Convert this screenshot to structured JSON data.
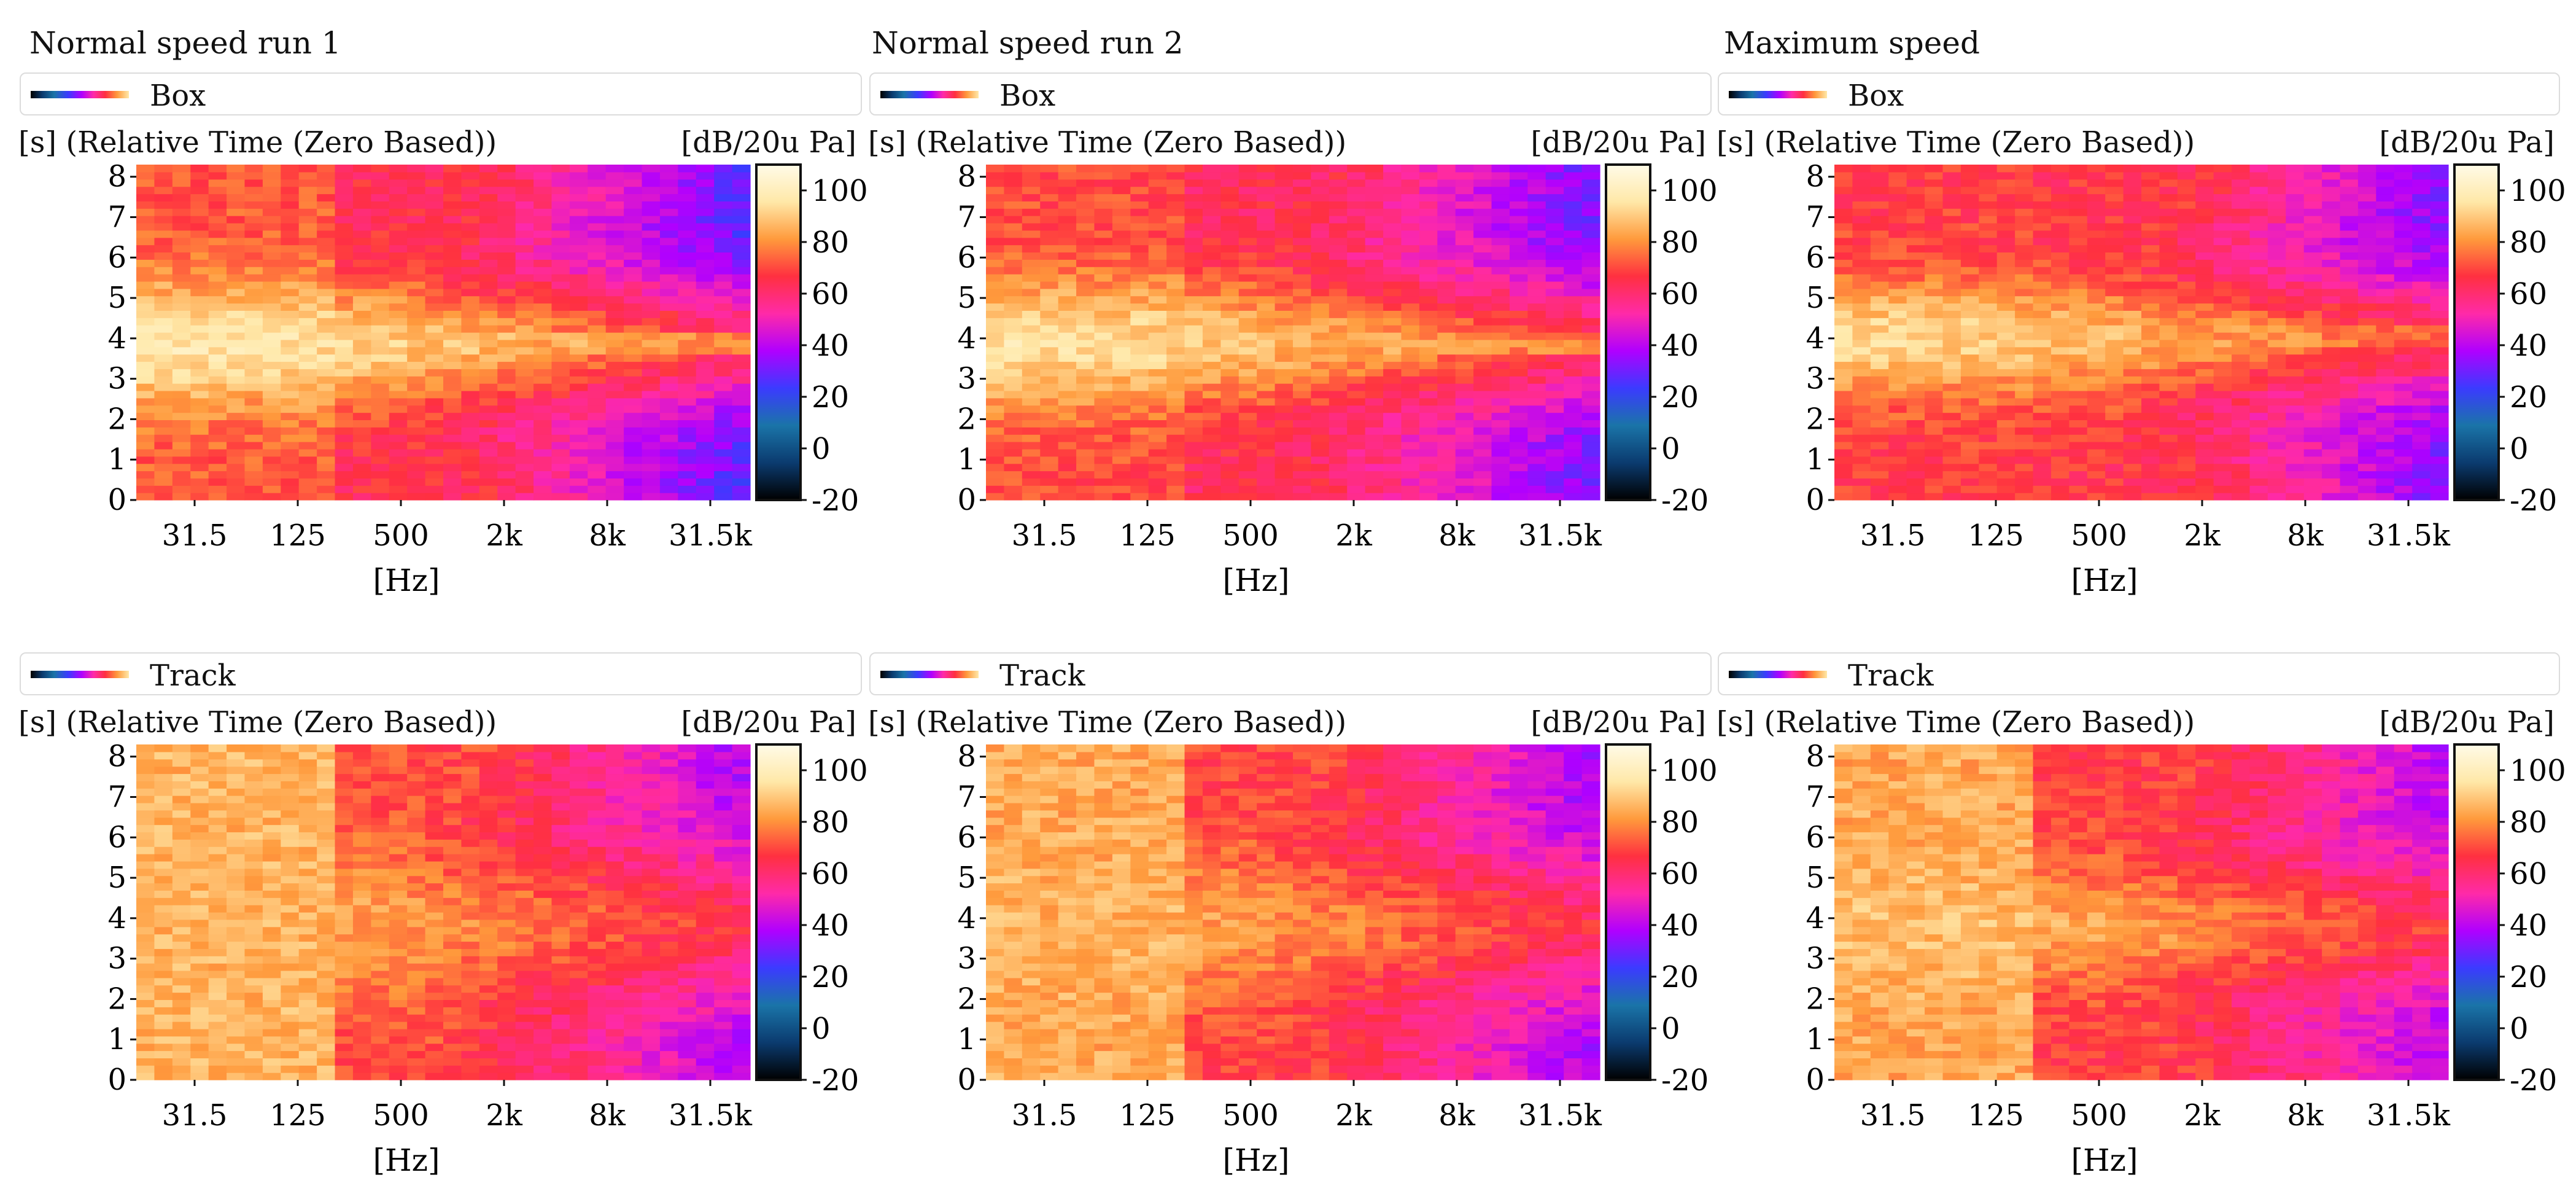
{
  "column_titles": [
    "Normal speed run 1",
    "Normal speed run 2",
    "Maximum speed"
  ],
  "colors": {
    "colormap": [
      "#000000",
      "#0b3b6f",
      "#1a74a8",
      "#3b3bff",
      "#b000ff",
      "#ff2aa8",
      "#ff3040",
      "#ff9a3c",
      "#ffe8a8",
      "#fffbe8"
    ]
  },
  "chart_data": [
    {
      "type": "heatmap",
      "row_label": "Box",
      "title": "Normal speed run 1",
      "ylabel": "[s] (Relative Time (Zero Based))",
      "unit": "[dB/20u Pa]",
      "xlabel": "[Hz]",
      "x_ticks": [
        "31.5",
        "125",
        "500",
        "2k",
        "8k",
        "31.5k"
      ],
      "y_ticks": [
        "0",
        "1",
        "2",
        "3",
        "4",
        "5",
        "6",
        "7",
        "8"
      ],
      "y_range": [
        0,
        8.3
      ],
      "colorbar_ticks": [
        "-20",
        "0",
        "20",
        "40",
        "60",
        "80",
        "100"
      ],
      "colorbar_range": [
        -20,
        110
      ],
      "profile": {
        "peak_time": 3.85,
        "high_band_level": 26,
        "low_band_level": 72,
        "mid_level": 64,
        "ridge_level": 98,
        "spread": 1.9
      }
    },
    {
      "type": "heatmap",
      "row_label": "Box",
      "title": "Normal speed run 2",
      "ylabel": "[s] (Relative Time (Zero Based))",
      "unit": "[dB/20u Pa]",
      "xlabel": "[Hz]",
      "x_ticks": [
        "31.5",
        "125",
        "500",
        "2k",
        "8k",
        "31.5k"
      ],
      "y_ticks": [
        "0",
        "1",
        "2",
        "3",
        "4",
        "5",
        "6",
        "7",
        "8"
      ],
      "y_range": [
        0,
        8.3
      ],
      "colorbar_ticks": [
        "-20",
        "0",
        "20",
        "40",
        "60",
        "80",
        "100"
      ],
      "colorbar_range": [
        -20,
        110
      ],
      "profile": {
        "peak_time": 3.9,
        "high_band_level": 30,
        "low_band_level": 70,
        "mid_level": 63,
        "ridge_level": 96,
        "spread": 1.9
      }
    },
    {
      "type": "heatmap",
      "row_label": "Box",
      "title": "Maximum speed",
      "ylabel": "[s] (Relative Time (Zero Based))",
      "unit": "[dB/20u Pa]",
      "xlabel": "[Hz]",
      "x_ticks": [
        "31.5",
        "125",
        "500",
        "2k",
        "8k",
        "31.5k"
      ],
      "y_ticks": [
        "0",
        "1",
        "2",
        "3",
        "4",
        "5",
        "6",
        "7",
        "8"
      ],
      "y_range": [
        0,
        8.3
      ],
      "colorbar_ticks": [
        "-20",
        "0",
        "20",
        "40",
        "60",
        "80",
        "100"
      ],
      "colorbar_range": [
        -20,
        110
      ],
      "profile": {
        "peak_time": 4.0,
        "high_band_level": 32,
        "low_band_level": 68,
        "mid_level": 66,
        "ridge_level": 94,
        "spread": 1.7
      }
    },
    {
      "type": "heatmap",
      "row_label": "Track",
      "title": "Normal speed run 1",
      "ylabel": "[s] (Relative Time (Zero Based))",
      "unit": "[dB/20u Pa]",
      "xlabel": "[Hz]",
      "x_ticks": [
        "31.5",
        "125",
        "500",
        "2k",
        "8k",
        "31.5k"
      ],
      "y_ticks": [
        "0",
        "1",
        "2",
        "3",
        "4",
        "5",
        "6",
        "7",
        "8"
      ],
      "y_range": [
        0,
        8.3
      ],
      "colorbar_ticks": [
        "-20",
        "0",
        "20",
        "40",
        "60",
        "80",
        "100"
      ],
      "colorbar_range": [
        -20,
        110
      ],
      "profile": {
        "peak_time": 3.85,
        "high_band_level": 38,
        "low_band_level": 86,
        "mid_level": 70,
        "ridge_level": 86,
        "spread": 2.3
      }
    },
    {
      "type": "heatmap",
      "row_label": "Track",
      "title": "Normal speed run 2",
      "ylabel": "[s] (Relative Time (Zero Based))",
      "unit": "[dB/20u Pa]",
      "xlabel": "[Hz]",
      "x_ticks": [
        "31.5",
        "125",
        "500",
        "2k",
        "8k",
        "31.5k"
      ],
      "y_ticks": [
        "0",
        "1",
        "2",
        "3",
        "4",
        "5",
        "6",
        "7",
        "8"
      ],
      "y_range": [
        0,
        8.3
      ],
      "colorbar_ticks": [
        "-20",
        "0",
        "20",
        "40",
        "60",
        "80",
        "100"
      ],
      "colorbar_range": [
        -20,
        110
      ],
      "profile": {
        "peak_time": 3.8,
        "high_band_level": 36,
        "low_band_level": 84,
        "mid_level": 69,
        "ridge_level": 86,
        "spread": 2.2
      }
    },
    {
      "type": "heatmap",
      "row_label": "Track",
      "title": "Maximum speed",
      "ylabel": "[s] (Relative Time (Zero Based))",
      "unit": "[dB/20u Pa]",
      "xlabel": "[Hz]",
      "x_ticks": [
        "31.5",
        "125",
        "500",
        "2k",
        "8k",
        "31.5k"
      ],
      "y_ticks": [
        "0",
        "1",
        "2",
        "3",
        "4",
        "5",
        "6",
        "7",
        "8"
      ],
      "y_range": [
        0,
        8.3
      ],
      "colorbar_ticks": [
        "-20",
        "0",
        "20",
        "40",
        "60",
        "80",
        "100"
      ],
      "colorbar_range": [
        -20,
        110
      ],
      "profile": {
        "peak_time": 3.8,
        "high_band_level": 40,
        "low_band_level": 84,
        "mid_level": 68,
        "ridge_level": 88,
        "spread": 1.8
      }
    }
  ]
}
